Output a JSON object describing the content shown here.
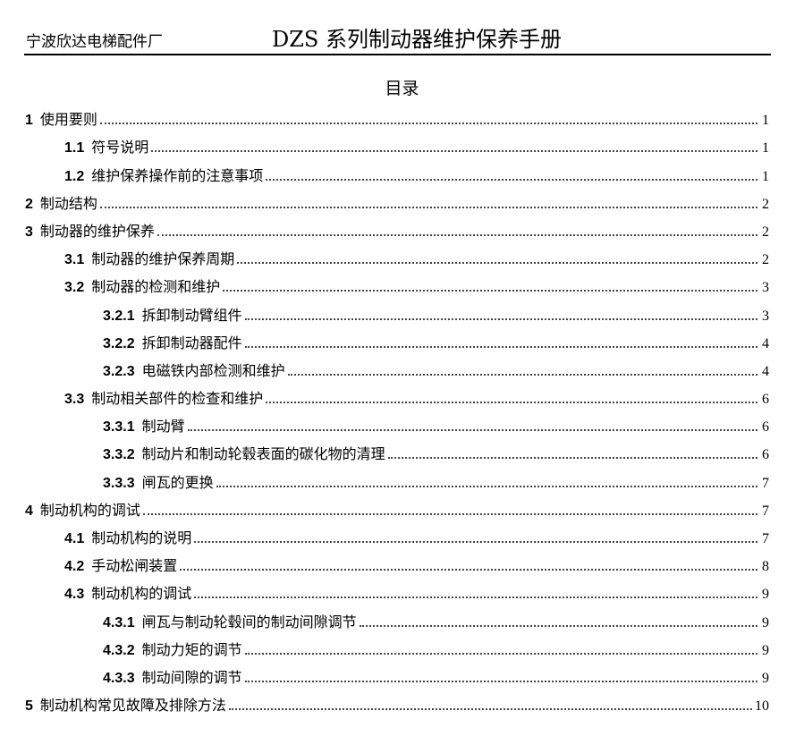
{
  "header": {
    "company": "宁波欣达电梯配件厂",
    "title": "DZS 系列制动器维护保养手册"
  },
  "toc_title": "目录",
  "toc": [
    {
      "level": 1,
      "num": "1",
      "title": "使用要则",
      "page": "1"
    },
    {
      "level": 2,
      "num": "1.1",
      "title": "符号说明",
      "page": "1"
    },
    {
      "level": 2,
      "num": "1.2",
      "title": "维护保养操作前的注意事项",
      "page": "1"
    },
    {
      "level": 1,
      "num": "2",
      "title": "制动结构",
      "page": "2"
    },
    {
      "level": 1,
      "num": "3",
      "title": "制动器的维护保养",
      "page": "2"
    },
    {
      "level": 2,
      "num": "3.1",
      "title": "制动器的维护保养周期",
      "page": "2"
    },
    {
      "level": 2,
      "num": "3.2",
      "title": "制动器的检测和维护",
      "page": "3"
    },
    {
      "level": 3,
      "num": "3.2.1",
      "title": "拆卸制动臂组件",
      "page": "3"
    },
    {
      "level": 3,
      "num": "3.2.2",
      "title": "拆卸制动器配件",
      "page": "4"
    },
    {
      "level": 3,
      "num": "3.2.3",
      "title": "电磁铁内部检测和维护",
      "page": "4"
    },
    {
      "level": 2,
      "num": "3.3",
      "title": "制动相关部件的检查和维护",
      "page": "6"
    },
    {
      "level": 3,
      "num": "3.3.1",
      "title": "制动臂",
      "page": "6"
    },
    {
      "level": 3,
      "num": "3.3.2",
      "title": "制动片和制动轮毂表面的碳化物的清理",
      "page": "6"
    },
    {
      "level": 3,
      "num": "3.3.3",
      "title": "闸瓦的更换",
      "page": "7"
    },
    {
      "level": 1,
      "num": "4",
      "title": "制动机构的调试",
      "page": "7"
    },
    {
      "level": 2,
      "num": "4.1",
      "title": "制动机构的说明",
      "page": "7"
    },
    {
      "level": 2,
      "num": "4.2",
      "title": "手动松闸装置",
      "page": "8"
    },
    {
      "level": 2,
      "num": "4.3",
      "title": "制动机构的调试",
      "page": "9"
    },
    {
      "level": 3,
      "num": "4.3.1",
      "title": "闸瓦与制动轮毂间的制动间隙调节",
      "page": "9"
    },
    {
      "level": 3,
      "num": "4.3.2",
      "title": "制动力矩的调节",
      "page": "9"
    },
    {
      "level": 3,
      "num": "4.3.3",
      "title": "制动间隙的调节",
      "page": "9"
    },
    {
      "level": 1,
      "num": "5",
      "title": "制动机构常见故障及排除方法",
      "page": "10"
    }
  ]
}
